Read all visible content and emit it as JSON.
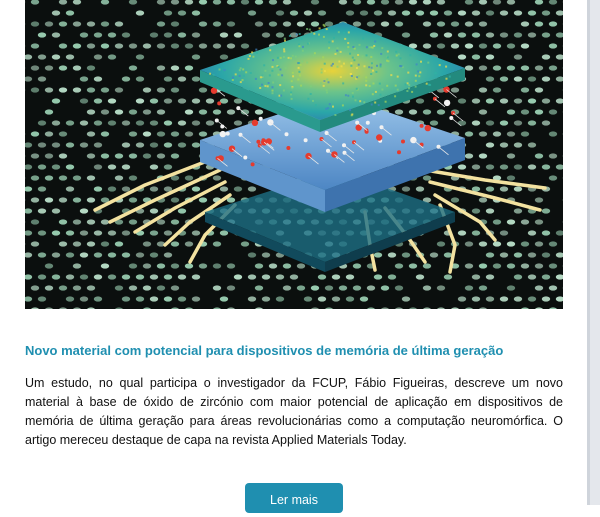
{
  "article": {
    "image_alt_icon": "chip-illustration",
    "headline": "Novo material com potencial para dispositivos de memória de última geração",
    "body": "Um estudo, no qual participa o investigador da FCUP, Fábio Figueiras, descreve um novo material à base de óxido de zircónio com maior potencial de aplicação em dispositivos de memória de última geração para áreas revolucionárias como a computação neuromórfica. O artigo mereceu destaque de capa na revista Applied Materials Today.",
    "cta_label": "Ler mais"
  },
  "colors": {
    "accent": "#1f8fb0",
    "background": "#ffffff",
    "text": "#111111"
  }
}
